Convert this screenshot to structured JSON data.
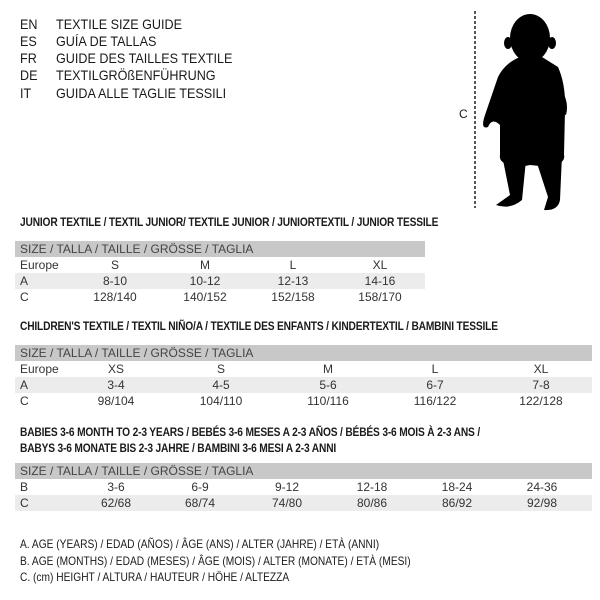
{
  "header": [
    {
      "code": "EN",
      "text": "TEXTILE SIZE GUIDE"
    },
    {
      "code": "ES",
      "text": "GUÍA DE TALLAS"
    },
    {
      "code": "FR",
      "text": "GUIDE DES TAILLES TEXTILE"
    },
    {
      "code": "DE",
      "text": "TEXTILGRÖßENFÜHRUNG"
    },
    {
      "code": "IT",
      "text": "GUIDA ALLE TAGLIE TESSILI"
    }
  ],
  "figure": {
    "height_label": "C",
    "icon": "baby-silhouette-icon"
  },
  "junior": {
    "title": "JUNIOR TEXTILE / TEXTIL JUNIOR/ TEXTILE JUNIOR / JUNIORTEXTIL / JUNIOR TESSILE",
    "header": "SIZE / TALLA / TAILLE / GRÖSSE / TAGLIA",
    "rows": [
      {
        "label": "Europe",
        "values": [
          "S",
          "M",
          "L",
          "XL"
        ]
      },
      {
        "label": "A",
        "values": [
          "8-10",
          "10-12",
          "12-13",
          "14-16"
        ]
      },
      {
        "label": "C",
        "values": [
          "128/140",
          "140/152",
          "152/158",
          "158/170"
        ]
      }
    ]
  },
  "children": {
    "title": "CHILDREN'S TEXTILE / TEXTIL NIÑO/A / TEXTILE DES ENFANTS / KINDERTEXTIL / BAMBINI TESSILE",
    "header": "SIZE / TALLA / TAILLE / GRÖSSE / TAGLIA",
    "rows": [
      {
        "label": "Europe",
        "values": [
          "XS",
          "S",
          "M",
          "L",
          "XL"
        ]
      },
      {
        "label": "A",
        "values": [
          "3-4",
          "4-5",
          "5-6",
          "6-7",
          "7-8"
        ]
      },
      {
        "label": "C",
        "values": [
          "98/104",
          "104/110",
          "110/116",
          "116/122",
          "122/128"
        ]
      }
    ]
  },
  "babies": {
    "title_line1": "BABIES 3-6 MONTH TO 2-3 YEARS / BEBÉS 3-6 MESES A 2-3 AÑOS / BÉBÉS 3-6 MOIS À 2-3 ANS /",
    "title_line2": "BABYS 3-6 MONATE BIS 2-3 JAHRE / BAMBINI 3-6 MESI A 2-3 ANNI",
    "header": "SIZE / TALLA / TAILLE / GRÖSSE / TAGLIA",
    "rows": [
      {
        "label": "B",
        "values": [
          "3-6",
          "6-9",
          "9-12",
          "12-18",
          "18-24",
          "24-36"
        ]
      },
      {
        "label": "C",
        "values": [
          "62/68",
          "68/74",
          "74/80",
          "80/86",
          "86/92",
          "92/98"
        ]
      }
    ]
  },
  "legend": [
    "A. AGE (YEARS) / EDAD (AÑOS) / ÂGE (ANS) / ALTER (JAHRE) / ETÀ (ANNI)",
    "B. AGE (MONTHS) / EDAD (MESES) / ÂGE (MOIS) / ALTER (MONATE) / ETÀ (MESI)",
    "C. (cm) HEIGHT / ALTURA / HAUTEUR / HÖHE / ALTEZZA"
  ]
}
